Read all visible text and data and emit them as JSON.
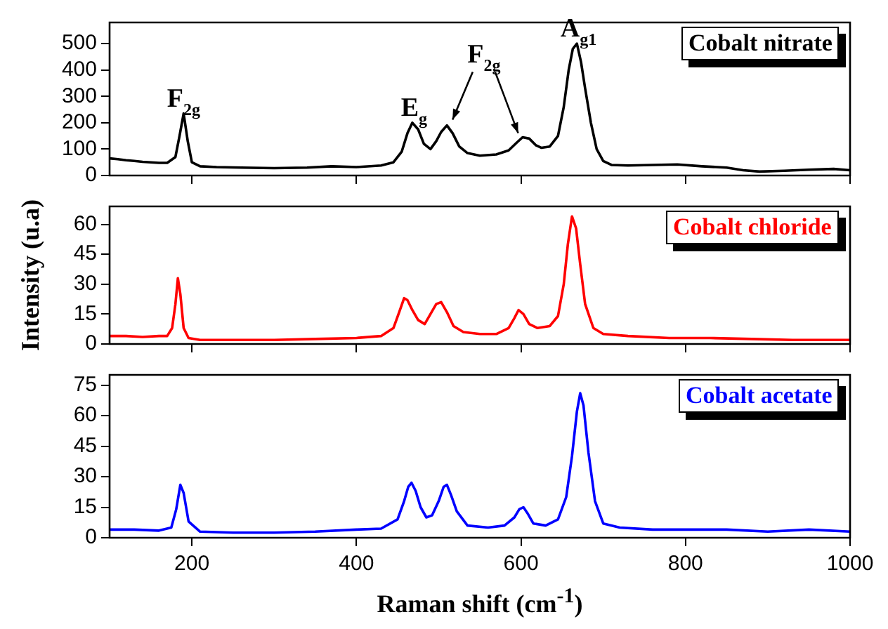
{
  "chart_data": [
    {
      "type": "line",
      "x": [
        100,
        110,
        120,
        130,
        140,
        150,
        160,
        170,
        180,
        185,
        190,
        195,
        200,
        210,
        230,
        260,
        300,
        340,
        370,
        400,
        430,
        445,
        455,
        462,
        468,
        475,
        482,
        490,
        497,
        503,
        510,
        517,
        525,
        535,
        550,
        570,
        585,
        595,
        602,
        610,
        618,
        625,
        635,
        645,
        652,
        658,
        663,
        668,
        673,
        678,
        685,
        692,
        700,
        710,
        730,
        760,
        790,
        820,
        850,
        870,
        890,
        920,
        950,
        980,
        1000
      ],
      "series": [
        {
          "name": "Cobalt nitrate",
          "color": "#000000",
          "values": [
            65,
            62,
            58,
            55,
            52,
            50,
            48,
            48,
            70,
            150,
            235,
            130,
            50,
            35,
            32,
            30,
            28,
            30,
            35,
            32,
            38,
            50,
            90,
            160,
            200,
            175,
            120,
            100,
            130,
            165,
            190,
            160,
            110,
            85,
            75,
            80,
            95,
            125,
            145,
            140,
            115,
            105,
            110,
            150,
            260,
            400,
            480,
            500,
            430,
            330,
            200,
            100,
            55,
            40,
            38,
            40,
            42,
            35,
            30,
            20,
            15,
            18,
            22,
            25,
            20
          ]
        }
      ],
      "xlim": [
        100,
        1000
      ],
      "xticks": [
        200,
        400,
        600,
        800,
        1000
      ],
      "ylim": [
        0,
        580
      ],
      "yticks": [
        0,
        100,
        200,
        300,
        400,
        500
      ],
      "tick_labels": "y",
      "legend": "top right",
      "marker": "none",
      "line_style": "solid",
      "grid": false,
      "annotations": [
        {
          "text": "F$_{2g}$",
          "x": 190,
          "y": 235
        },
        {
          "text": "E$_{g}$",
          "x": 470,
          "y": 200
        },
        {
          "text": "F$_{2g}$",
          "x": 510,
          "y": 190
        },
        {
          "text": "A$_{g1}$",
          "x": 670,
          "y": 500
        }
      ]
    },
    {
      "type": "line",
      "x": [
        100,
        120,
        140,
        160,
        170,
        176,
        180,
        183,
        186,
        190,
        196,
        210,
        250,
        300,
        350,
        400,
        430,
        445,
        452,
        458,
        462,
        468,
        475,
        483,
        490,
        497,
        503,
        510,
        518,
        530,
        550,
        570,
        585,
        592,
        597,
        603,
        610,
        620,
        635,
        645,
        652,
        657,
        662,
        667,
        672,
        678,
        688,
        700,
        730,
        780,
        830,
        880,
        930,
        1000
      ],
      "series": [
        {
          "name": "Cobalt chloride",
          "color": "#ff0000",
          "values": [
            4,
            4,
            3.5,
            4,
            4,
            8,
            20,
            33,
            25,
            8,
            3,
            2,
            2,
            2,
            2.5,
            3,
            4,
            8,
            16,
            23,
            22,
            17,
            12,
            10,
            15,
            20,
            21,
            16,
            9,
            6,
            5,
            5,
            8,
            13,
            17,
            15,
            10,
            8,
            9,
            14,
            30,
            50,
            64,
            58,
            40,
            20,
            8,
            5,
            4,
            3,
            3,
            2.5,
            2,
            2
          ]
        }
      ],
      "xlim": [
        100,
        1000
      ],
      "xticks": [
        200,
        400,
        600,
        800,
        1000
      ],
      "ylim": [
        0,
        69
      ],
      "yticks": [
        0,
        15,
        30,
        45,
        60
      ],
      "ylabel": "Intensity (u.a)",
      "tick_labels": "y",
      "legend": "top right",
      "marker": "none",
      "line_style": "solid",
      "grid": false
    },
    {
      "type": "line",
      "x": [
        100,
        130,
        160,
        175,
        181,
        186,
        190,
        196,
        210,
        250,
        300,
        350,
        400,
        430,
        450,
        458,
        463,
        467,
        472,
        478,
        485,
        492,
        500,
        506,
        510,
        515,
        522,
        535,
        560,
        580,
        592,
        598,
        603,
        608,
        615,
        630,
        645,
        655,
        662,
        668,
        672,
        676,
        682,
        690,
        700,
        720,
        760,
        800,
        850,
        900,
        950,
        1000
      ],
      "series": [
        {
          "name": "Cobalt acetate",
          "color": "#0000ff",
          "values": [
            4,
            4,
            3.5,
            5,
            14,
            26,
            22,
            8,
            3,
            2.5,
            2.5,
            3,
            4,
            4.5,
            9,
            18,
            25,
            27,
            23,
            15,
            10,
            11,
            18,
            25,
            26,
            21,
            13,
            6,
            5,
            6,
            10,
            14,
            15,
            12,
            7,
            6,
            9,
            20,
            40,
            62,
            71,
            65,
            42,
            18,
            7,
            5,
            4,
            4,
            4,
            3,
            4,
            3
          ]
        }
      ],
      "xlim": [
        100,
        1000
      ],
      "xticks": [
        200,
        400,
        600,
        800,
        1000
      ],
      "ylim": [
        0,
        80
      ],
      "yticks": [
        0,
        15,
        30,
        45,
        60,
        75
      ],
      "xlabel": "Raman shift (cm$^{-1}$)",
      "legend": "top right",
      "marker": "none",
      "line_style": "solid",
      "grid": false
    }
  ]
}
